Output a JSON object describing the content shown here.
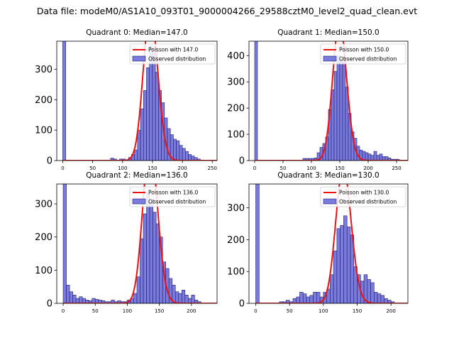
{
  "suptitle": "Data file: modeM0/AS1A10_093T01_9000004266_29588cztM0_level2_quad_clean.evt",
  "colors": {
    "bar_fill": "#7b7bde",
    "bar_edge": "#1e1e6e",
    "curve": "#ee1111"
  },
  "chart_data": [
    {
      "type": "bar",
      "title": "Quadrant 0: Median=147.0",
      "legend": [
        "Poisson with 147.0",
        "Observed distribution"
      ],
      "legend_placement": "top-right",
      "median": 147.0,
      "xlim": [
        -10,
        258
      ],
      "ylim": [
        0,
        392
      ],
      "xticks": [
        0,
        50,
        100,
        150,
        200,
        250
      ],
      "yticks": [
        0,
        100,
        200,
        300
      ],
      "bin_width": 5,
      "bins": [
        {
          "x": 0,
          "v": 392
        },
        {
          "x": 80,
          "v": 8
        },
        {
          "x": 85,
          "v": 5
        },
        {
          "x": 95,
          "v": 5
        },
        {
          "x": 100,
          "v": 5
        },
        {
          "x": 110,
          "v": 10
        },
        {
          "x": 115,
          "v": 20
        },
        {
          "x": 120,
          "v": 35
        },
        {
          "x": 125,
          "v": 100
        },
        {
          "x": 130,
          "v": 170
        },
        {
          "x": 135,
          "v": 230
        },
        {
          "x": 140,
          "v": 305
        },
        {
          "x": 145,
          "v": 375
        },
        {
          "x": 150,
          "v": 355
        },
        {
          "x": 155,
          "v": 290
        },
        {
          "x": 160,
          "v": 230
        },
        {
          "x": 165,
          "v": 190
        },
        {
          "x": 170,
          "v": 140
        },
        {
          "x": 175,
          "v": 105
        },
        {
          "x": 180,
          "v": 85
        },
        {
          "x": 185,
          "v": 70
        },
        {
          "x": 190,
          "v": 65
        },
        {
          "x": 195,
          "v": 50
        },
        {
          "x": 200,
          "v": 40
        },
        {
          "x": 205,
          "v": 30
        },
        {
          "x": 210,
          "v": 20
        },
        {
          "x": 215,
          "v": 15
        },
        {
          "x": 220,
          "v": 10
        },
        {
          "x": 225,
          "v": 5
        }
      ]
    },
    {
      "type": "bar",
      "title": "Quadrant 1: Median=150.0",
      "legend": [
        "Poisson with 150.0",
        "Observed distribution"
      ],
      "legend_placement": "top-right",
      "median": 150.0,
      "xlim": [
        -10,
        270
      ],
      "ylim": [
        0,
        455
      ],
      "xticks": [
        0,
        50,
        100,
        150,
        200,
        250
      ],
      "yticks": [
        0,
        100,
        200,
        300,
        400
      ],
      "bin_width": 5,
      "bins": [
        {
          "x": 0,
          "v": 455
        },
        {
          "x": 85,
          "v": 8
        },
        {
          "x": 90,
          "v": 8
        },
        {
          "x": 95,
          "v": 8
        },
        {
          "x": 100,
          "v": 8
        },
        {
          "x": 105,
          "v": 10
        },
        {
          "x": 110,
          "v": 30
        },
        {
          "x": 115,
          "v": 50
        },
        {
          "x": 120,
          "v": 65
        },
        {
          "x": 125,
          "v": 90
        },
        {
          "x": 130,
          "v": 195
        },
        {
          "x": 135,
          "v": 270
        },
        {
          "x": 140,
          "v": 340
        },
        {
          "x": 145,
          "v": 400
        },
        {
          "x": 150,
          "v": 385
        },
        {
          "x": 155,
          "v": 375
        },
        {
          "x": 160,
          "v": 280
        },
        {
          "x": 165,
          "v": 180
        },
        {
          "x": 170,
          "v": 110
        },
        {
          "x": 175,
          "v": 85
        },
        {
          "x": 180,
          "v": 55
        },
        {
          "x": 185,
          "v": 40
        },
        {
          "x": 190,
          "v": 35
        },
        {
          "x": 195,
          "v": 30
        },
        {
          "x": 200,
          "v": 25
        },
        {
          "x": 205,
          "v": 20
        },
        {
          "x": 210,
          "v": 35
        },
        {
          "x": 215,
          "v": 20
        },
        {
          "x": 220,
          "v": 25
        },
        {
          "x": 225,
          "v": 15
        },
        {
          "x": 230,
          "v": 15
        },
        {
          "x": 235,
          "v": 10
        },
        {
          "x": 240,
          "v": 5
        },
        {
          "x": 245,
          "v": 5
        },
        {
          "x": 250,
          "v": 5
        }
      ]
    },
    {
      "type": "bar",
      "title": "Quadrant 2: Median=136.0",
      "legend": [
        "Poisson with 136.0",
        "Observed distribution"
      ],
      "legend_placement": "top-right",
      "median": 136.0,
      "xlim": [
        -10,
        240
      ],
      "ylim": [
        0,
        360
      ],
      "xticks": [
        0,
        50,
        100,
        150,
        200
      ],
      "yticks": [
        0,
        100,
        200,
        300
      ],
      "bin_width": 5,
      "bins": [
        {
          "x": 0,
          "v": 360
        },
        {
          "x": 5,
          "v": 55
        },
        {
          "x": 10,
          "v": 35
        },
        {
          "x": 15,
          "v": 25
        },
        {
          "x": 20,
          "v": 15
        },
        {
          "x": 25,
          "v": 20
        },
        {
          "x": 30,
          "v": 15
        },
        {
          "x": 35,
          "v": 10
        },
        {
          "x": 40,
          "v": 8
        },
        {
          "x": 45,
          "v": 15
        },
        {
          "x": 50,
          "v": 12
        },
        {
          "x": 55,
          "v": 10
        },
        {
          "x": 60,
          "v": 8
        },
        {
          "x": 65,
          "v": 5
        },
        {
          "x": 70,
          "v": 5
        },
        {
          "x": 75,
          "v": 10
        },
        {
          "x": 80,
          "v": 5
        },
        {
          "x": 85,
          "v": 8
        },
        {
          "x": 90,
          "v": 5
        },
        {
          "x": 95,
          "v": 5
        },
        {
          "x": 100,
          "v": 10
        },
        {
          "x": 105,
          "v": 15
        },
        {
          "x": 110,
          "v": 30
        },
        {
          "x": 115,
          "v": 80
        },
        {
          "x": 120,
          "v": 195
        },
        {
          "x": 125,
          "v": 270
        },
        {
          "x": 130,
          "v": 330
        },
        {
          "x": 135,
          "v": 305
        },
        {
          "x": 140,
          "v": 275
        },
        {
          "x": 145,
          "v": 240
        },
        {
          "x": 150,
          "v": 200
        },
        {
          "x": 155,
          "v": 125
        },
        {
          "x": 160,
          "v": 105
        },
        {
          "x": 165,
          "v": 75
        },
        {
          "x": 170,
          "v": 55
        },
        {
          "x": 175,
          "v": 35
        },
        {
          "x": 180,
          "v": 30
        },
        {
          "x": 185,
          "v": 40
        },
        {
          "x": 190,
          "v": 25
        },
        {
          "x": 195,
          "v": 15
        },
        {
          "x": 200,
          "v": 25
        },
        {
          "x": 205,
          "v": 10
        },
        {
          "x": 210,
          "v": 5
        }
      ]
    },
    {
      "type": "bar",
      "title": "Quadrant 3: Median=130.0",
      "legend": [
        "Poisson with 130.0",
        "Observed distribution"
      ],
      "legend_placement": "top-right",
      "median": 130.0,
      "xlim": [
        -10,
        225
      ],
      "ylim": [
        0,
        375
      ],
      "xticks": [
        0,
        50,
        100,
        150,
        200
      ],
      "yticks": [
        0,
        100,
        200,
        300
      ],
      "bin_width": 5,
      "bins": [
        {
          "x": 0,
          "v": 375
        },
        {
          "x": 35,
          "v": 5
        },
        {
          "x": 40,
          "v": 5
        },
        {
          "x": 45,
          "v": 10
        },
        {
          "x": 50,
          "v": 5
        },
        {
          "x": 55,
          "v": 15
        },
        {
          "x": 60,
          "v": 20
        },
        {
          "x": 65,
          "v": 35
        },
        {
          "x": 70,
          "v": 30
        },
        {
          "x": 75,
          "v": 20
        },
        {
          "x": 80,
          "v": 25
        },
        {
          "x": 85,
          "v": 35
        },
        {
          "x": 90,
          "v": 35
        },
        {
          "x": 95,
          "v": 20
        },
        {
          "x": 100,
          "v": 35
        },
        {
          "x": 105,
          "v": 45
        },
        {
          "x": 110,
          "v": 90
        },
        {
          "x": 115,
          "v": 165
        },
        {
          "x": 120,
          "v": 235
        },
        {
          "x": 125,
          "v": 245
        },
        {
          "x": 130,
          "v": 275
        },
        {
          "x": 135,
          "v": 240
        },
        {
          "x": 140,
          "v": 215
        },
        {
          "x": 145,
          "v": 115
        },
        {
          "x": 150,
          "v": 90
        },
        {
          "x": 155,
          "v": 70
        },
        {
          "x": 160,
          "v": 90
        },
        {
          "x": 165,
          "v": 75
        },
        {
          "x": 170,
          "v": 65
        },
        {
          "x": 175,
          "v": 35
        },
        {
          "x": 180,
          "v": 30
        },
        {
          "x": 185,
          "v": 25
        },
        {
          "x": 190,
          "v": 15
        },
        {
          "x": 195,
          "v": 10
        },
        {
          "x": 200,
          "v": 5
        }
      ]
    }
  ]
}
